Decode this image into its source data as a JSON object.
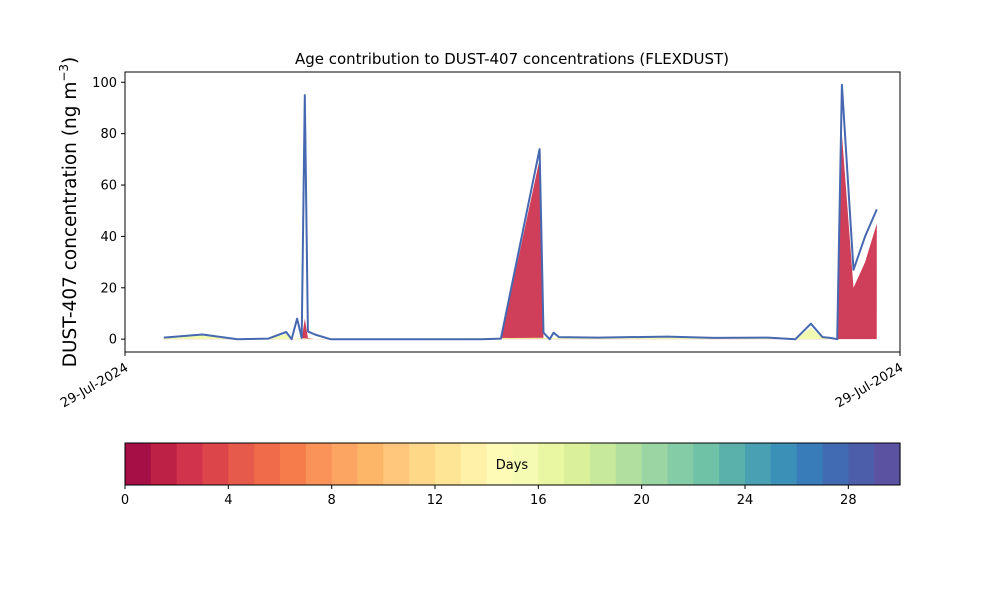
{
  "chart_data": [
    {
      "type": "area",
      "title": "Age contribution to DUST-407 concentrations (FLEXDUST)",
      "ylabel_main": "DUST-407 concentration (ng m",
      "ylabel_sup": "−3",
      "ylabel_close": ")",
      "xlabel": "",
      "ylim": [
        -5,
        104
      ],
      "yticks": [
        0,
        20,
        40,
        60,
        80,
        100
      ],
      "xtick_labels": [
        "29-Jul-2024",
        "29-Jul-2024"
      ],
      "grid": false,
      "series": [
        {
          "role": "total",
          "color": "#4668b0",
          "points": [
            [
              0.05,
              0.6
            ],
            [
              0.1,
              1.8
            ],
            [
              0.145,
              0.0
            ],
            [
              0.185,
              0.2
            ],
            [
              0.208,
              2.8
            ],
            [
              0.215,
              0.0
            ],
            [
              0.222,
              8.0
            ],
            [
              0.228,
              0.5
            ],
            [
              0.232,
              95.0
            ],
            [
              0.236,
              3.0
            ],
            [
              0.245,
              1.8
            ],
            [
              0.265,
              0.0
            ],
            [
              0.38,
              0.0
            ],
            [
              0.46,
              0.0
            ],
            [
              0.485,
              0.2
            ],
            [
              0.535,
              74.0
            ],
            [
              0.54,
              2.5
            ],
            [
              0.548,
              0.0
            ],
            [
              0.553,
              2.5
            ],
            [
              0.56,
              0.8
            ],
            [
              0.61,
              0.6
            ],
            [
              0.7,
              1.0
            ],
            [
              0.76,
              0.5
            ],
            [
              0.83,
              0.6
            ],
            [
              0.865,
              0.0
            ],
            [
              0.885,
              6.0
            ],
            [
              0.9,
              0.8
            ],
            [
              0.91,
              0.5
            ],
            [
              0.919,
              0.0
            ],
            [
              0.925,
              99.0
            ],
            [
              0.94,
              27.0
            ],
            [
              0.955,
              40.0
            ],
            [
              0.97,
              50.5
            ]
          ]
        },
        {
          "role": "youngest-days",
          "color": "#cb2a47",
          "points": [
            [
              0.05,
              0.0
            ],
            [
              0.1,
              0.0
            ],
            [
              0.215,
              0.0
            ],
            [
              0.228,
              0.0
            ],
            [
              0.232,
              8.0
            ],
            [
              0.236,
              0.5
            ],
            [
              0.245,
              0.0
            ],
            [
              0.38,
              0.0
            ],
            [
              0.485,
              0.0
            ],
            [
              0.535,
              70.0
            ],
            [
              0.54,
              0.0
            ],
            [
              0.548,
              0.0
            ],
            [
              0.553,
              0.0
            ],
            [
              0.919,
              0.0
            ],
            [
              0.925,
              80.0
            ],
            [
              0.94,
              20.0
            ],
            [
              0.955,
              30.0
            ],
            [
              0.97,
              45.0
            ]
          ]
        },
        {
          "role": "mid-age-days",
          "color": "#f1f9a9",
          "points": [
            [
              0.05,
              0.3
            ],
            [
              0.1,
              1.5
            ],
            [
              0.145,
              0.0
            ],
            [
              0.185,
              0.1
            ],
            [
              0.208,
              2.0
            ],
            [
              0.215,
              0.0
            ],
            [
              0.225,
              0.5
            ],
            [
              0.25,
              0.0
            ],
            [
              0.56,
              0.6
            ],
            [
              0.7,
              0.8
            ],
            [
              0.83,
              0.4
            ],
            [
              0.865,
              0.0
            ],
            [
              0.885,
              4.5
            ],
            [
              0.9,
              0.5
            ],
            [
              0.919,
              0.0
            ]
          ]
        }
      ],
      "colorbar": {
        "label": "Days",
        "ticks": [
          0,
          4,
          8,
          12,
          16,
          20,
          24,
          28
        ],
        "range": [
          0,
          30
        ],
        "colors": [
          "#a50f46",
          "#bd2145",
          "#d0334b",
          "#dc464b",
          "#e65a4b",
          "#f06b4a",
          "#f67d4b",
          "#f9935a",
          "#fca562",
          "#fdb668",
          "#fec77b",
          "#fed787",
          "#fee596",
          "#fff1a8",
          "#fefbb7",
          "#f5fbb3",
          "#e9f6a2",
          "#daf09a",
          "#c6e99b",
          "#b0dfa0",
          "#9bd5a3",
          "#84cca5",
          "#6fc2a6",
          "#5ab0aa",
          "#48a0b2",
          "#3b90b8",
          "#387dba",
          "#416bb2",
          "#4c5ea9",
          "#5b53a2"
        ]
      }
    }
  ]
}
